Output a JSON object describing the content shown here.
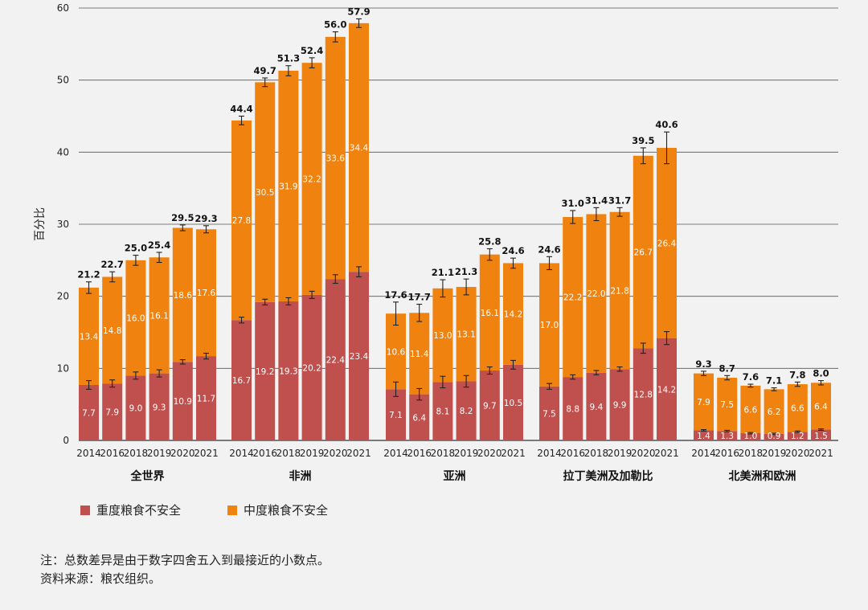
{
  "chart_data": {
    "type": "bar",
    "stacked": true,
    "ylabel": "百分比",
    "ylim": [
      0,
      60
    ],
    "yticks": [
      0,
      10,
      20,
      30,
      40,
      50,
      60
    ],
    "grid": true,
    "groups": [
      {
        "name": "全世界",
        "years": [
          "2014",
          "2016",
          "2018",
          "2019",
          "2020",
          "2021"
        ],
        "severe": [
          7.7,
          7.9,
          9.0,
          9.3,
          10.9,
          11.7
        ],
        "moderate": [
          13.4,
          14.8,
          16.0,
          16.1,
          18.6,
          17.6
        ],
        "total": [
          21.2,
          22.7,
          25.0,
          25.4,
          29.5,
          29.3
        ],
        "err_severe": [
          0.6,
          0.5,
          0.5,
          0.5,
          0.3,
          0.4
        ],
        "err_total": [
          0.8,
          0.7,
          0.7,
          0.7,
          0.4,
          0.5
        ]
      },
      {
        "name": "非洲",
        "years": [
          "2014",
          "2016",
          "2018",
          "2019",
          "2020",
          "2021"
        ],
        "severe": [
          16.7,
          19.2,
          19.3,
          20.2,
          22.4,
          23.4
        ],
        "moderate": [
          27.8,
          30.5,
          31.9,
          32.2,
          33.6,
          34.4
        ],
        "total": [
          44.4,
          49.7,
          51.3,
          52.4,
          56.0,
          57.9
        ],
        "err_severe": [
          0.4,
          0.4,
          0.5,
          0.5,
          0.6,
          0.7
        ],
        "err_total": [
          0.6,
          0.6,
          0.7,
          0.7,
          0.7,
          0.6
        ]
      },
      {
        "name": "亚洲",
        "years": [
          "2014",
          "2016",
          "2018",
          "2019",
          "2020",
          "2021"
        ],
        "severe": [
          7.1,
          6.4,
          8.1,
          8.2,
          9.7,
          10.5
        ],
        "moderate": [
          10.6,
          11.4,
          13.0,
          13.1,
          16.1,
          14.2
        ],
        "total": [
          17.6,
          17.7,
          21.1,
          21.3,
          25.8,
          24.6
        ],
        "err_severe": [
          1.0,
          0.8,
          0.8,
          0.8,
          0.5,
          0.6
        ],
        "err_total": [
          1.6,
          1.2,
          1.2,
          1.1,
          0.8,
          0.7
        ]
      },
      {
        "name": "拉丁美洲及加勒比",
        "years": [
          "2014",
          "2016",
          "2018",
          "2019",
          "2020",
          "2021"
        ],
        "severe": [
          7.5,
          8.8,
          9.4,
          9.9,
          12.8,
          14.2
        ],
        "moderate": [
          17.0,
          22.2,
          22.0,
          21.8,
          26.7,
          26.4
        ],
        "total": [
          24.6,
          31.0,
          31.4,
          31.7,
          39.5,
          40.6
        ],
        "err_severe": [
          0.4,
          0.3,
          0.3,
          0.3,
          0.7,
          0.9
        ],
        "err_total": [
          0.9,
          0.9,
          0.9,
          0.6,
          1.1,
          2.2
        ]
      },
      {
        "name": "北美洲和欧洲",
        "years": [
          "2014",
          "2016",
          "2018",
          "2019",
          "2020",
          "2021"
        ],
        "severe": [
          1.4,
          1.3,
          1.0,
          0.9,
          1.2,
          1.5
        ],
        "moderate": [
          7.9,
          7.5,
          6.6,
          6.2,
          6.6,
          6.4
        ],
        "total": [
          9.3,
          8.7,
          7.6,
          7.1,
          7.8,
          8.0
        ],
        "err_severe": [
          0.1,
          0.1,
          0.1,
          0.1,
          0.1,
          0.1
        ],
        "err_total": [
          0.3,
          0.3,
          0.2,
          0.2,
          0.3,
          0.3
        ]
      }
    ],
    "legend": [
      {
        "label": "重度粮食不安全",
        "color": "#c0504d"
      },
      {
        "label": "中度粮食不安全",
        "color": "#f0820f"
      }
    ]
  },
  "notes": {
    "line1": "注：总数差异是由于数字四舍五入到最接近的小数点。",
    "line2": "资料来源：粮农组织。"
  }
}
